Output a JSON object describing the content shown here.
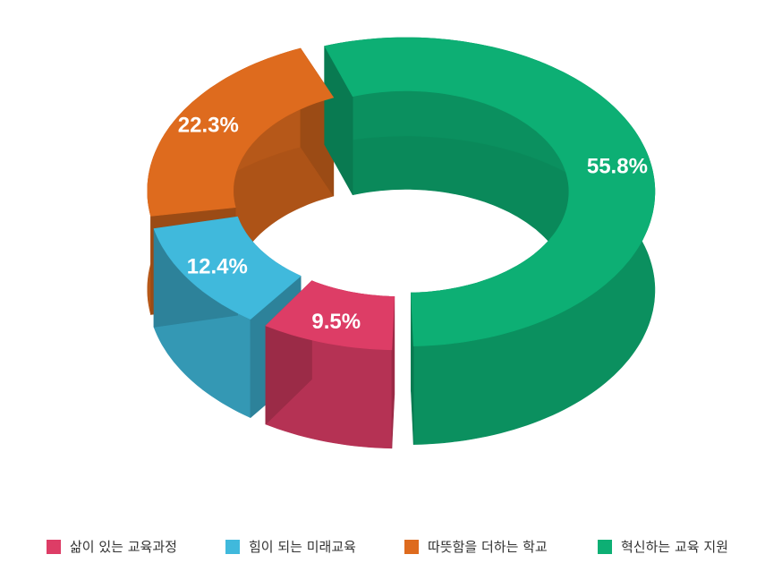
{
  "chart_data": {
    "type": "pie",
    "style": "3d-donut",
    "categories": [
      "삶이 있는 교육과정",
      "힘이 되는 미래교육",
      "따뜻함을 더하는 학교",
      "혁신하는 교육 지원"
    ],
    "values": [
      9.5,
      12.4,
      22.3,
      55.8
    ],
    "value_labels": [
      "9.5%",
      "12.4%",
      "22.3%",
      "55.8%"
    ],
    "colors": [
      "#dd3d66",
      "#40b9dc",
      "#de6b1e",
      "#0daf74"
    ],
    "legend_position": "bottom"
  }
}
